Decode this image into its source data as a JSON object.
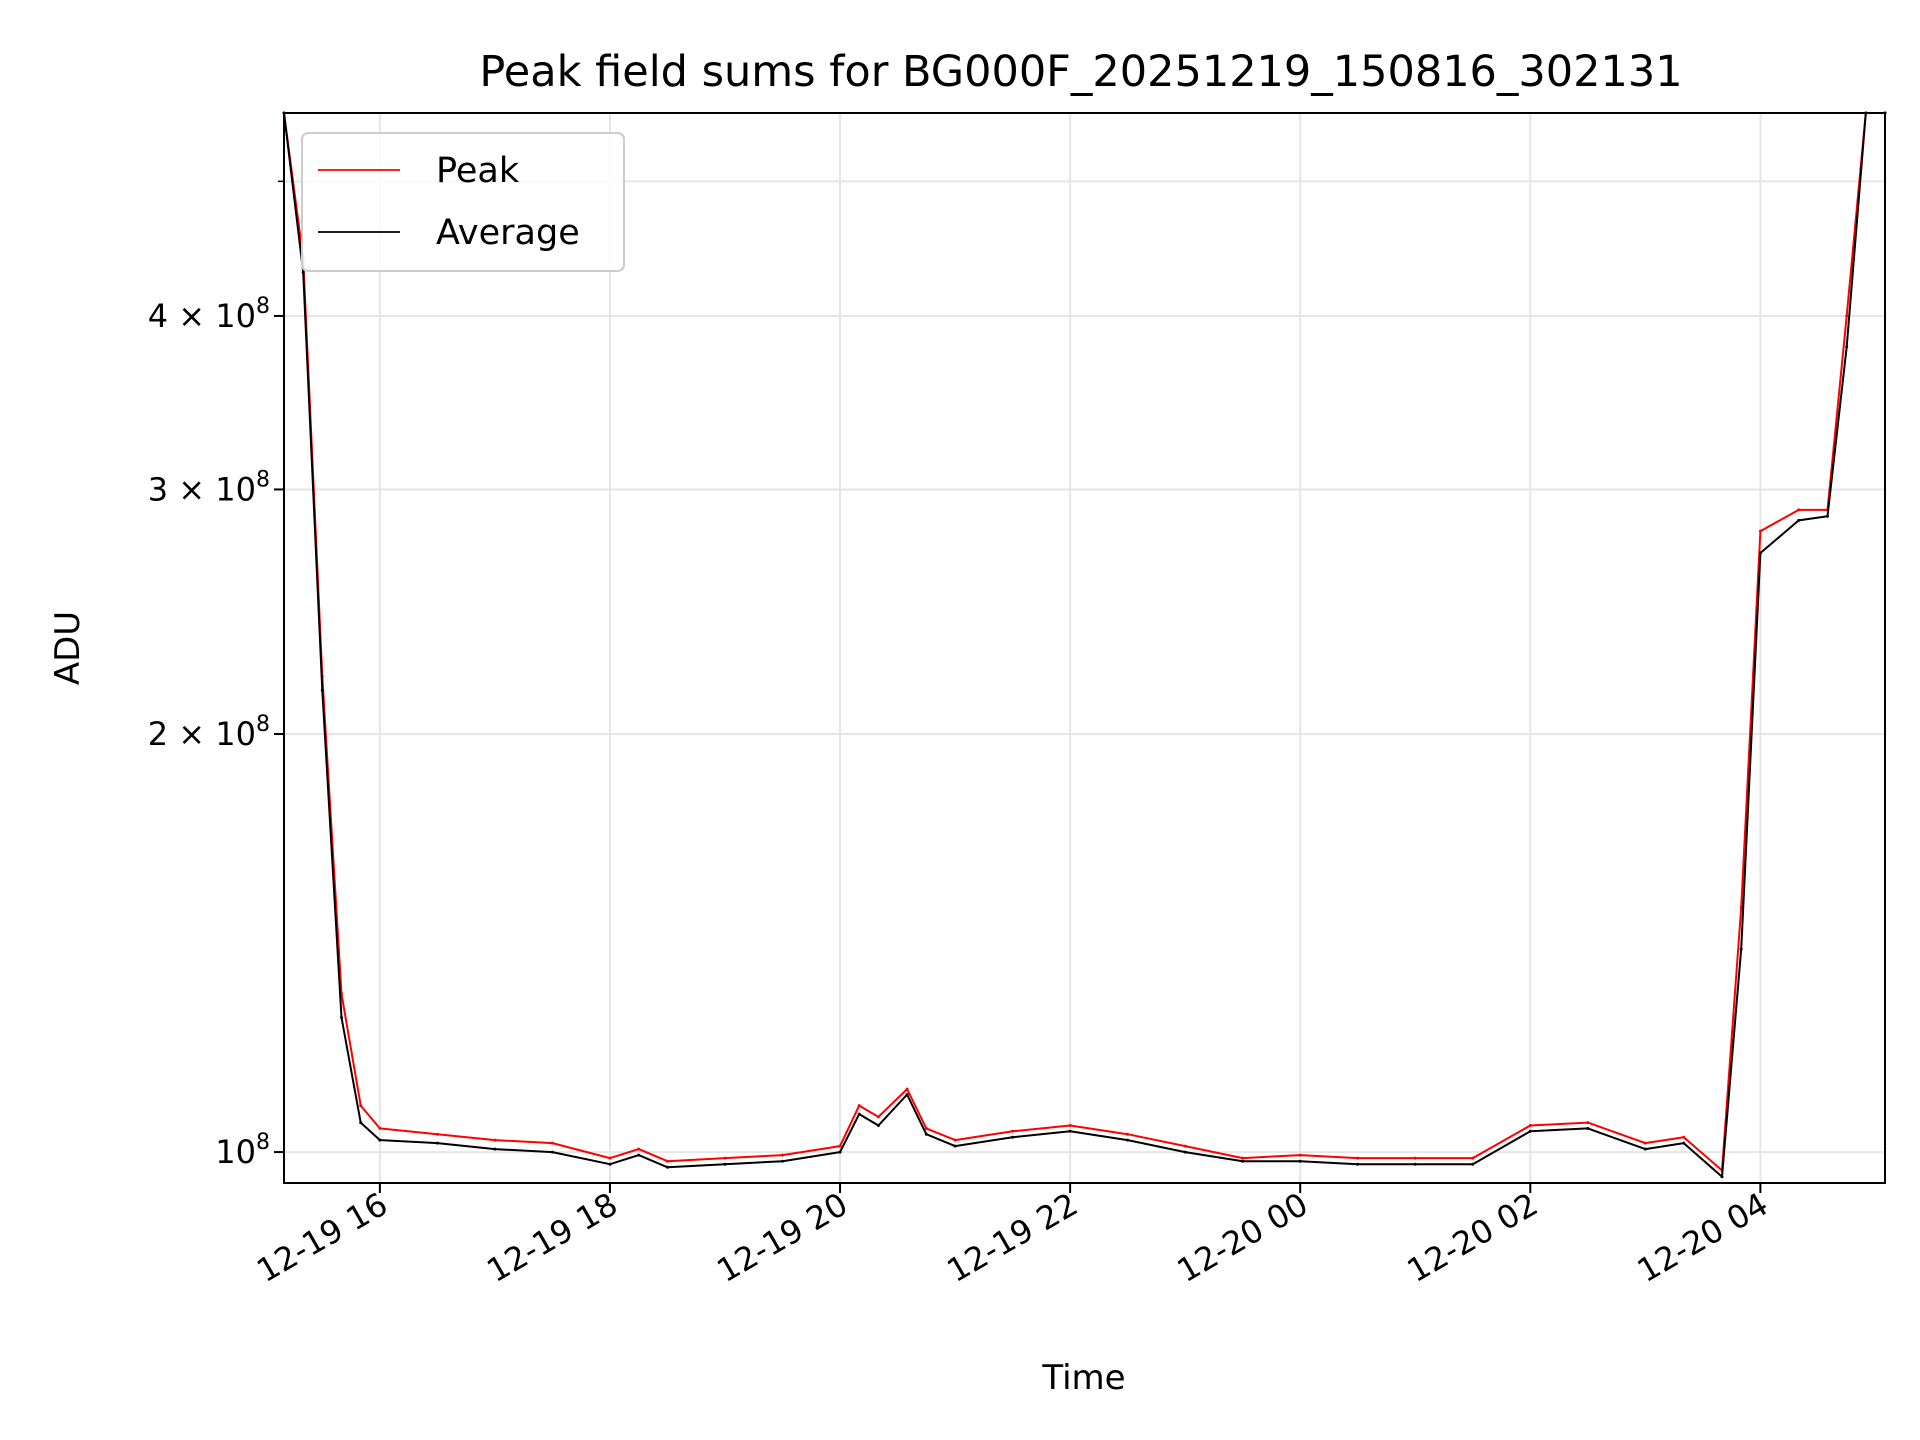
{
  "chart_data": {
    "type": "line",
    "title": "Peak field sums for BG000F_20251219_150816_302131",
    "xlabel": "Time",
    "ylabel": "ADU",
    "y_scale": "log",
    "ylim": [
      95000000,
      560000000
    ],
    "xlim": [
      "2025-12-19T15:10",
      "2025-12-20T05:05"
    ],
    "grid": true,
    "legend": {
      "placement": "top-left",
      "entries": [
        "Peak",
        "Average"
      ]
    },
    "x_ticks": [
      {
        "t": "2025-12-19T16:00",
        "label": "12-19 16"
      },
      {
        "t": "2025-12-19T18:00",
        "label": "12-19 18"
      },
      {
        "t": "2025-12-19T20:00",
        "label": "12-19 20"
      },
      {
        "t": "2025-12-19T22:00",
        "label": "12-19 22"
      },
      {
        "t": "2025-12-20T00:00",
        "label": "12-20 00"
      },
      {
        "t": "2025-12-20T02:00",
        "label": "12-20 02"
      },
      {
        "t": "2025-12-20T04:00",
        "label": "12-20 04"
      }
    ],
    "y_ticks": [
      {
        "value": 100000000,
        "base": "10",
        "exp": "8"
      },
      {
        "value": 200000000,
        "base": "2 × 10",
        "exp": "8"
      },
      {
        "value": 300000000,
        "base": "3 × 10",
        "exp": "8"
      },
      {
        "value": 400000000,
        "base": "4 × 10",
        "exp": "8"
      }
    ],
    "y_minor_ticks": [
      500000000
    ],
    "series": [
      {
        "name": "Peak",
        "color": "#ff0000",
        "x": [
          "2025-12-19T15:10",
          "2025-12-19T15:20",
          "2025-12-19T15:30",
          "2025-12-19T15:40",
          "2025-12-19T15:50",
          "2025-12-19T16:00",
          "2025-12-19T16:30",
          "2025-12-19T17:00",
          "2025-12-19T17:30",
          "2025-12-19T18:00",
          "2025-12-19T18:15",
          "2025-12-19T18:30",
          "2025-12-19T19:00",
          "2025-12-19T19:30",
          "2025-12-19T20:00",
          "2025-12-19T20:10",
          "2025-12-19T20:20",
          "2025-12-19T20:35",
          "2025-12-19T20:45",
          "2025-12-19T21:00",
          "2025-12-19T21:30",
          "2025-12-19T22:00",
          "2025-12-19T22:30",
          "2025-12-19T23:00",
          "2025-12-19T23:30",
          "2025-12-20T00:00",
          "2025-12-20T00:30",
          "2025-12-20T01:00",
          "2025-12-20T01:30",
          "2025-12-20T02:00",
          "2025-12-20T02:30",
          "2025-12-20T03:00",
          "2025-12-20T03:20",
          "2025-12-20T03:40",
          "2025-12-20T03:50",
          "2025-12-20T04:00",
          "2025-12-20T04:20",
          "2025-12-20T04:35",
          "2025-12-20T04:45",
          "2025-12-20T04:55",
          "2025-12-20T05:05"
        ],
        "y": [
          560000000,
          440000000,
          220000000,
          130000000,
          108000000,
          104000000,
          103000000,
          102000000,
          101500000,
          99000000,
          100500000,
          98500000,
          99000000,
          99500000,
          101000000,
          108000000,
          106000000,
          111000000,
          104000000,
          102000000,
          103500000,
          104500000,
          103000000,
          101000000,
          99000000,
          99500000,
          99000000,
          99000000,
          99000000,
          104500000,
          105000000,
          101500000,
          102500000,
          97000000,
          150000000,
          280000000,
          290000000,
          290000000,
          400000000,
          560000000,
          560000000
        ]
      },
      {
        "name": "Average",
        "color": "#000000",
        "x": [
          "2025-12-19T15:10",
          "2025-12-19T15:20",
          "2025-12-19T15:30",
          "2025-12-19T15:40",
          "2025-12-19T15:50",
          "2025-12-19T16:00",
          "2025-12-19T16:30",
          "2025-12-19T17:00",
          "2025-12-19T17:30",
          "2025-12-19T18:00",
          "2025-12-19T18:15",
          "2025-12-19T18:30",
          "2025-12-19T19:00",
          "2025-12-19T19:30",
          "2025-12-19T20:00",
          "2025-12-19T20:10",
          "2025-12-19T20:20",
          "2025-12-19T20:35",
          "2025-12-19T20:45",
          "2025-12-19T21:00",
          "2025-12-19T21:30",
          "2025-12-19T22:00",
          "2025-12-19T22:30",
          "2025-12-19T23:00",
          "2025-12-19T23:30",
          "2025-12-20T00:00",
          "2025-12-20T00:30",
          "2025-12-20T01:00",
          "2025-12-20T01:30",
          "2025-12-20T02:00",
          "2025-12-20T02:30",
          "2025-12-20T03:00",
          "2025-12-20T03:20",
          "2025-12-20T03:40",
          "2025-12-20T03:50",
          "2025-12-20T04:00",
          "2025-12-20T04:20",
          "2025-12-20T04:35",
          "2025-12-20T04:45",
          "2025-12-20T04:55",
          "2025-12-20T05:05"
        ],
        "y": [
          560000000,
          430000000,
          215000000,
          125000000,
          105000000,
          102000000,
          101500000,
          100500000,
          100000000,
          98000000,
          99500000,
          97500000,
          98000000,
          98500000,
          100000000,
          106500000,
          104500000,
          110000000,
          103000000,
          101000000,
          102500000,
          103500000,
          102000000,
          100000000,
          98500000,
          98500000,
          98000000,
          98000000,
          98000000,
          103500000,
          104000000,
          100500000,
          101500000,
          96000000,
          140000000,
          270000000,
          285000000,
          287000000,
          380000000,
          560000000,
          560000000
        ]
      }
    ]
  }
}
